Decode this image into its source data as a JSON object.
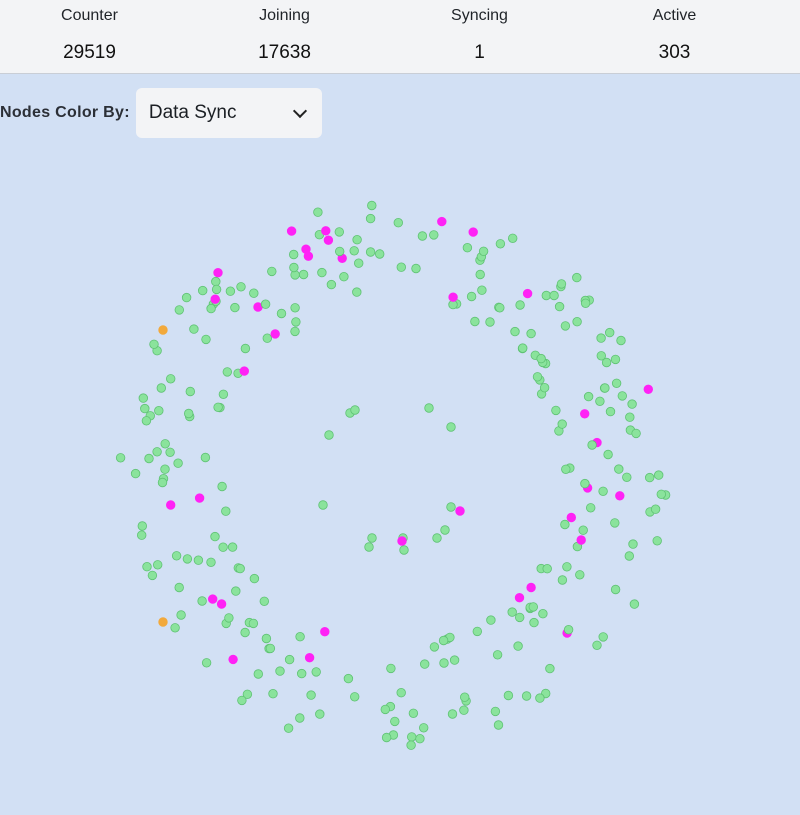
{
  "stats": [
    {
      "label": "Counter",
      "value": "29519"
    },
    {
      "label": "Joining",
      "value": "17638"
    },
    {
      "label": "Syncing",
      "value": "1"
    },
    {
      "label": "Active",
      "value": "303"
    }
  ],
  "controls": {
    "color_by_label": "Nodes Color By:",
    "color_by_value": "Data Sync"
  },
  "graph": {
    "colors": {
      "synced": "#8ae39c",
      "synced_border": "#5fc274",
      "out_of_sync": "#ff22f5",
      "syncing": "#f2a93b"
    }
  }
}
